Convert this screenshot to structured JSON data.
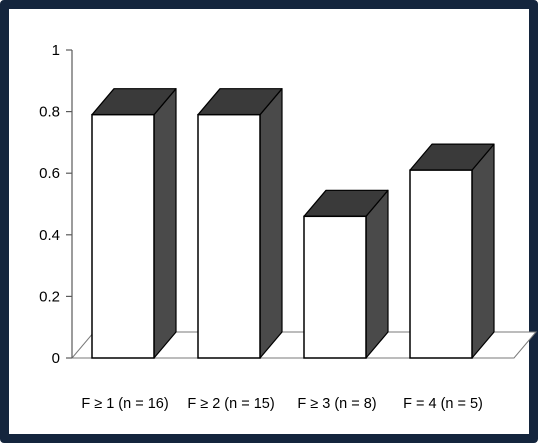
{
  "chart_data": {
    "type": "bar",
    "style": "3d-column",
    "categories": [
      "F ≥ 1 (n = 16)",
      "F ≥ 2 (n = 15)",
      "F ≥ 3 (n = 8)",
      "F = 4 (n = 5)"
    ],
    "values": [
      0.79,
      0.79,
      0.46,
      0.61
    ],
    "yticks": [
      "0",
      "0.2",
      "0.4",
      "0.6",
      "0.8",
      "1"
    ],
    "ylim": [
      0,
      1
    ],
    "title": "",
    "xlabel": "",
    "ylabel": "",
    "grid": false,
    "legend": "none",
    "colors": {
      "bar_front": "#ffffff",
      "bar_side": "#4a4a4a",
      "bar_top": "#3a3a3a",
      "outline": "#000000",
      "frame": "#14253d",
      "floor": "#ffffff"
    }
  }
}
